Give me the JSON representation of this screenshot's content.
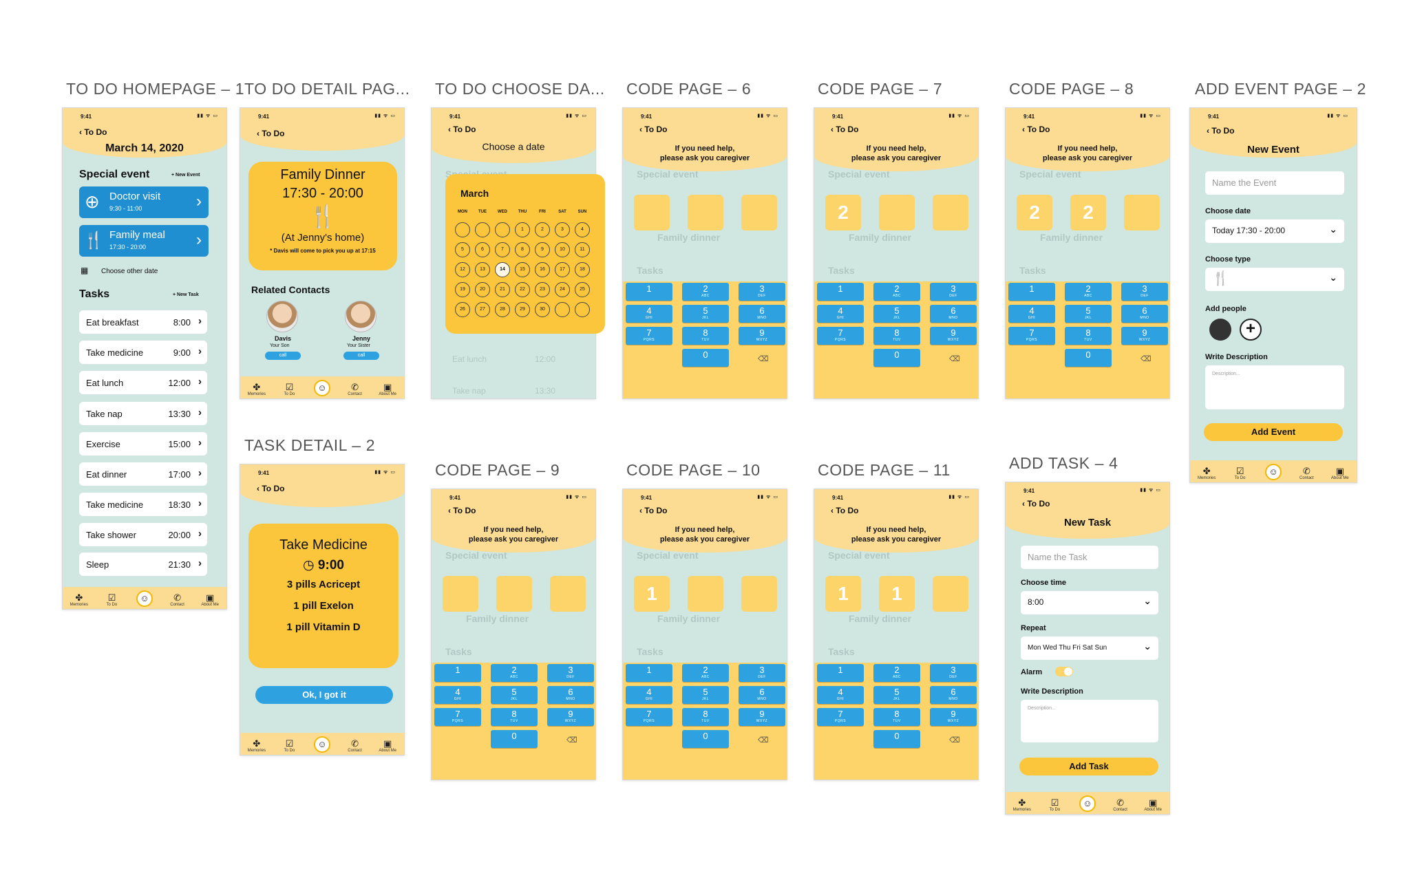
{
  "titles": [
    "TO DO HOMEPAGE – 1",
    "TO DO DETAIL PAG...",
    "TO DO CHOOSE DA...",
    "CODE PAGE – 6",
    "CODE PAGE – 7",
    "CODE PAGE – 8",
    "ADD EVENT PAGE – 2",
    "TASK DETAIL – 2",
    "CODE PAGE – 9",
    "CODE PAGE – 10",
    "CODE PAGE – 11",
    "ADD TASK – 4"
  ],
  "common": {
    "time": "9:41",
    "back": "To Do",
    "status_icons": "▮▮ ᯤ ▭"
  },
  "nav": [
    {
      "label": "Memories",
      "icon": "✤"
    },
    {
      "label": "To Do",
      "icon": "☑"
    },
    {
      "label": "",
      "icon": "☺"
    },
    {
      "label": "Contact",
      "icon": "✆"
    },
    {
      "label": "About Me",
      "icon": "▣"
    }
  ],
  "home": {
    "date": "March 14, 2020",
    "special_label": "Special event",
    "new_event": "+ New Event",
    "events": [
      {
        "title": "Doctor visit",
        "time": "9:30 - 11:00",
        "icon": "⊕"
      },
      {
        "title": "Family meal",
        "time": "17:30 - 20:00",
        "icon": "🍴"
      }
    ],
    "choose_other": "Choose other date",
    "tasks_label": "Tasks",
    "new_task": "+ New Task",
    "tasks": [
      {
        "name": "Eat breakfast",
        "time": "8:00"
      },
      {
        "name": "Take medicine",
        "time": "9:00"
      },
      {
        "name": "Eat lunch",
        "time": "12:00"
      },
      {
        "name": "Take nap",
        "time": "13:30"
      },
      {
        "name": "Exercise",
        "time": "15:00"
      },
      {
        "name": "Eat dinner",
        "time": "17:00"
      },
      {
        "name": "Take medicine",
        "time": "18:30"
      },
      {
        "name": "Take shower",
        "time": "20:00"
      },
      {
        "name": "Sleep",
        "time": "21:30"
      }
    ]
  },
  "detail": {
    "title": "Family Dinner",
    "time": "17:30 - 20:00",
    "where": "(At Jenny's home)",
    "note": "* Davis will come to pick you up at 17:15",
    "related": "Related Contacts",
    "contacts": [
      {
        "name": "Davis",
        "role": "Your Son",
        "call": "call"
      },
      {
        "name": "Jenny",
        "role": "Your Sister",
        "call": "call"
      }
    ]
  },
  "choose": {
    "title": "Choose a date",
    "month": "March",
    "dows": [
      "MON",
      "TUE",
      "WED",
      "THU",
      "FRI",
      "SAT",
      "SUN"
    ],
    "days": [
      "",
      "",
      "",
      "1",
      "2",
      "3",
      "4",
      "5",
      "6",
      "7",
      "8",
      "9",
      "10",
      "11",
      "12",
      "13",
      "14",
      "15",
      "16",
      "17",
      "18",
      "19",
      "20",
      "21",
      "22",
      "23",
      "24",
      "25",
      "26",
      "27",
      "28",
      "29",
      "30",
      "",
      ""
    ],
    "ghost_rows": [
      {
        "name": "Eat lunch",
        "time": "12:00"
      },
      {
        "name": "Take nap",
        "time": "13:30"
      }
    ],
    "ghost_special": "Special event"
  },
  "code": {
    "help": "If you need help,\nplease ask you caregiver",
    "ghost_special": "Special event",
    "ghost_tasks": "Tasks",
    "ghost_meal": "Family dinner",
    "keys": [
      {
        "d": "1",
        "s": ""
      },
      {
        "d": "2",
        "s": "ABC"
      },
      {
        "d": "3",
        "s": "DEF"
      },
      {
        "d": "4",
        "s": "GHI"
      },
      {
        "d": "5",
        "s": "JKL"
      },
      {
        "d": "6",
        "s": "MNO"
      },
      {
        "d": "7",
        "s": "PQRS"
      },
      {
        "d": "8",
        "s": "TUV"
      },
      {
        "d": "9",
        "s": "WXYZ"
      },
      {
        "d": "0",
        "s": ""
      }
    ],
    "backspace": "⌫",
    "pages": [
      {
        "boxes": [
          "",
          "",
          ""
        ]
      },
      {
        "boxes": [
          "2",
          "",
          ""
        ]
      },
      {
        "boxes": [
          "2",
          "2",
          ""
        ]
      },
      {
        "boxes": [
          "",
          "",
          ""
        ]
      },
      {
        "boxes": [
          "1",
          "",
          ""
        ]
      },
      {
        "boxes": [
          "1",
          "1",
          ""
        ]
      }
    ]
  },
  "add_event": {
    "title": "New Event",
    "name_ph": "Name the Event",
    "date_label": "Choose date",
    "date_value": "Today 17:30 - 20:00",
    "type_label": "Choose type",
    "type_icon": "🍴",
    "people_label": "Add people",
    "desc_label": "Write Description",
    "desc_ph": "Description...",
    "button": "Add Event"
  },
  "task_detail": {
    "title": "Take Medicine",
    "time": "9:00",
    "items": [
      "3 pills Acricept",
      "1 pill Exelon",
      "1 pill Vitamin D"
    ],
    "button": "Ok, I got it"
  },
  "add_task": {
    "title": "New Task",
    "name_ph": "Name the Task",
    "time_label": "Choose time",
    "time_value": "8:00",
    "repeat_label": "Repeat",
    "repeat_value": "Mon Wed Thu Fri Sat Sun",
    "alarm_label": "Alarm",
    "desc_label": "Write Description",
    "desc_ph": "Description...",
    "button": "Add Task"
  }
}
